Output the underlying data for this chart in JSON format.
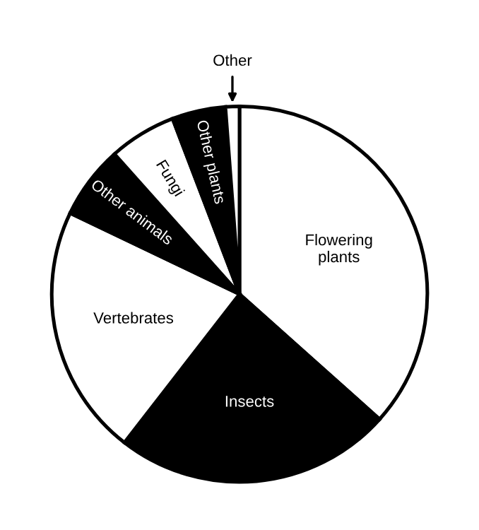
{
  "chart_data": {
    "type": "pie",
    "categories": [
      "Flowering plants",
      "Insects",
      "Vertebrates",
      "Other animals",
      "Fungi",
      "Other plants",
      "Other"
    ],
    "values": [
      36.6,
      23.9,
      21.6,
      6.3,
      5.8,
      4.6,
      1.2
    ],
    "colors": [
      "#ffffff",
      "#000000",
      "#ffffff",
      "#000000",
      "#ffffff",
      "#000000",
      "#ffffff"
    ]
  }
}
